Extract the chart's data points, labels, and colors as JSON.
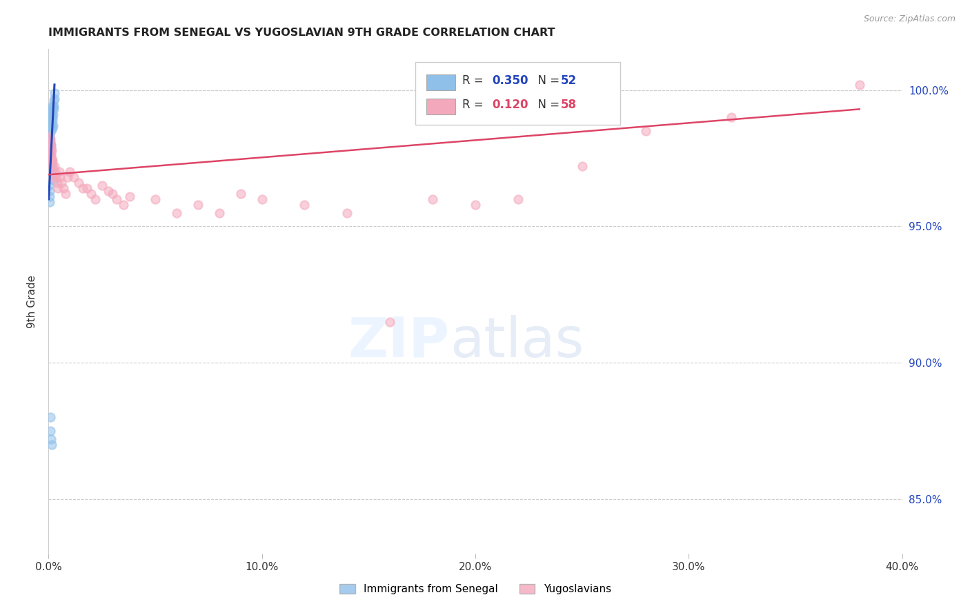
{
  "title": "IMMIGRANTS FROM SENEGAL VS YUGOSLAVIAN 9TH GRADE CORRELATION CHART",
  "source": "Source: ZipAtlas.com",
  "ylabel": "9th Grade",
  "legend_label1": "Immigrants from Senegal",
  "legend_label2": "Yugoslavians",
  "R1": 0.35,
  "N1": 52,
  "R2": 0.12,
  "N2": 58,
  "color1": "#8fc0ea",
  "color2": "#f4a8bc",
  "line_color1": "#2244bb",
  "line_color2": "#dd4466",
  "bg_color": "#ffffff",
  "title_color": "#222222",
  "source_color": "#999999",
  "blue_label_color": "#2244bb",
  "pink_label_color": "#dd4466",
  "senegal_x": [
    0.0002,
    0.0003,
    0.0003,
    0.0004,
    0.0005,
    0.0005,
    0.0006,
    0.0007,
    0.0008,
    0.0009,
    0.001,
    0.001,
    0.0011,
    0.0012,
    0.0013,
    0.0014,
    0.0015,
    0.0016,
    0.0017,
    0.0018,
    0.0019,
    0.002,
    0.0021,
    0.0022,
    0.0023,
    0.0024,
    0.0025,
    0.0026,
    0.0027,
    0.0028,
    0.0003,
    0.0004,
    0.0005,
    0.0006,
    0.0007,
    0.0008,
    0.0009,
    0.001,
    0.0011,
    0.0013,
    0.0015,
    0.0017,
    0.0019,
    0.0021,
    0.0003,
    0.0004,
    0.0005,
    0.0006,
    0.0008,
    0.001,
    0.0012,
    0.0015
  ],
  "senegal_y": [
    0.99,
    0.988,
    0.985,
    0.992,
    0.987,
    0.983,
    0.989,
    0.984,
    0.991,
    0.986,
    0.992,
    0.988,
    0.99,
    0.987,
    0.985,
    0.991,
    0.988,
    0.994,
    0.989,
    0.986,
    0.993,
    0.99,
    0.987,
    0.994,
    0.991,
    0.993,
    0.996,
    0.994,
    0.997,
    0.999,
    0.975,
    0.978,
    0.976,
    0.979,
    0.977,
    0.98,
    0.978,
    0.982,
    0.98,
    0.974,
    0.973,
    0.971,
    0.969,
    0.967,
    0.965,
    0.963,
    0.961,
    0.959,
    0.88,
    0.875,
    0.872,
    0.87
  ],
  "yugoslav_x": [
    0.0003,
    0.0004,
    0.0005,
    0.0006,
    0.0007,
    0.0008,
    0.0009,
    0.001,
    0.0011,
    0.0012,
    0.0013,
    0.0014,
    0.0015,
    0.0016,
    0.0018,
    0.002,
    0.0022,
    0.0025,
    0.0028,
    0.003,
    0.0035,
    0.004,
    0.0045,
    0.005,
    0.0055,
    0.006,
    0.007,
    0.008,
    0.009,
    0.01,
    0.012,
    0.014,
    0.016,
    0.018,
    0.02,
    0.022,
    0.025,
    0.028,
    0.03,
    0.032,
    0.035,
    0.038,
    0.05,
    0.06,
    0.07,
    0.08,
    0.09,
    0.1,
    0.12,
    0.14,
    0.16,
    0.18,
    0.2,
    0.22,
    0.25,
    0.28,
    0.32,
    0.38
  ],
  "yugoslav_y": [
    0.978,
    0.982,
    0.98,
    0.977,
    0.983,
    0.979,
    0.981,
    0.975,
    0.977,
    0.979,
    0.976,
    0.974,
    0.978,
    0.975,
    0.972,
    0.974,
    0.97,
    0.968,
    0.972,
    0.97,
    0.968,
    0.966,
    0.964,
    0.97,
    0.968,
    0.966,
    0.964,
    0.962,
    0.968,
    0.97,
    0.968,
    0.966,
    0.964,
    0.964,
    0.962,
    0.96,
    0.965,
    0.963,
    0.962,
    0.96,
    0.958,
    0.961,
    0.96,
    0.955,
    0.958,
    0.955,
    0.962,
    0.96,
    0.958,
    0.955,
    0.915,
    0.96,
    0.958,
    0.96,
    0.972,
    0.985,
    0.99,
    1.002
  ],
  "xlim": [
    0.0,
    0.4
  ],
  "ylim": [
    0.83,
    1.015
  ],
  "yticks": [
    0.85,
    0.9,
    0.95,
    1.0
  ],
  "xticks": [
    0.0,
    0.1,
    0.2,
    0.3,
    0.4
  ],
  "marker_size": 80,
  "marker_alpha": 0.55,
  "marker_lw": 1.5,
  "blue_line_x": [
    0.0001,
    0.0028
  ],
  "blue_line_y": [
    0.96,
    1.002
  ],
  "pink_line_x": [
    0.0003,
    0.38
  ],
  "pink_line_y": [
    0.969,
    0.993
  ]
}
